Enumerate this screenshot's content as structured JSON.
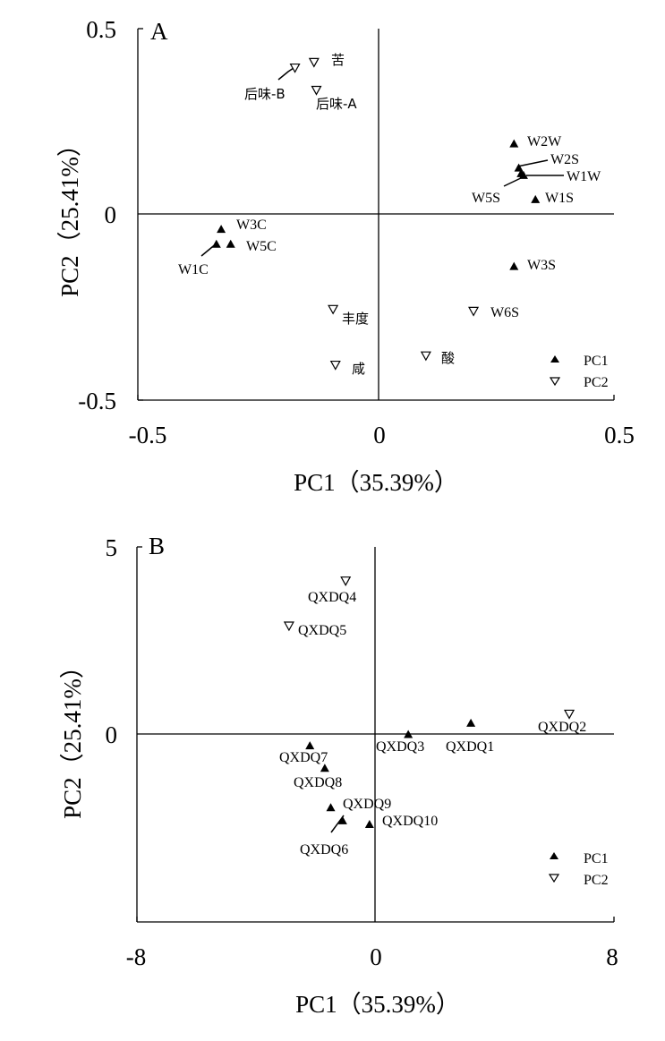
{
  "chart_data": [
    {
      "type": "scatter",
      "panel_label": "A",
      "xlabel": "PC1（35.39%）",
      "ylabel": "PC2（25.41%）",
      "xlim": [
        -0.5,
        0.5
      ],
      "ylim": [
        -0.5,
        0.5
      ],
      "xticks": [
        "-0.5",
        "0",
        "0.5"
      ],
      "yticks": [
        "0.5",
        "0",
        "-0.5"
      ],
      "legend_position": "bottom-right",
      "series": [
        {
          "name": "PC1",
          "marker": "filled-triangle-up",
          "points": [
            {
              "label": "W2W",
              "x": 0.29,
              "y": 0.19
            },
            {
              "label": "W2S",
              "x": 0.3,
              "y": 0.125
            },
            {
              "label": "W1W",
              "x": 0.31,
              "y": 0.105
            },
            {
              "label": "W5S",
              "x": 0.305,
              "y": 0.11
            },
            {
              "label": "W1S",
              "x": 0.335,
              "y": 0.04
            },
            {
              "label": "W3S",
              "x": 0.29,
              "y": -0.14
            },
            {
              "label": "W3C",
              "x": -0.325,
              "y": -0.04
            },
            {
              "label": "W5C",
              "x": -0.305,
              "y": -0.08
            },
            {
              "label": "W1C",
              "x": -0.335,
              "y": -0.08
            }
          ]
        },
        {
          "name": "PC2",
          "marker": "open-triangle-down",
          "points": [
            {
              "label": "苦",
              "x": -0.13,
              "y": 0.41
            },
            {
              "label": "后味-B",
              "x": -0.17,
              "y": 0.395
            },
            {
              "label": "后味-A",
              "x": -0.125,
              "y": 0.335
            },
            {
              "label": "丰度",
              "x": -0.09,
              "y": -0.255
            },
            {
              "label": "咸",
              "x": -0.085,
              "y": -0.405
            },
            {
              "label": "酸",
              "x": 0.105,
              "y": -0.38
            },
            {
              "label": "W6S",
              "x": 0.205,
              "y": -0.26
            }
          ]
        }
      ]
    },
    {
      "type": "scatter",
      "panel_label": "B",
      "xlabel": "PC1（35.39%）",
      "ylabel": "PC2（25.41%）",
      "xlim": [
        -8,
        8
      ],
      "ylim": [
        -5,
        5
      ],
      "xticks": [
        "-8",
        "0",
        "8"
      ],
      "yticks": [
        "5",
        "0"
      ],
      "legend_position": "bottom-right",
      "series": [
        {
          "name": "PC1",
          "marker": "filled-triangle-up",
          "points": [
            {
              "label": "QXDQ1",
              "x": 3.2,
              "y": 0.3
            },
            {
              "label": "QXDQ3",
              "x": 1.1,
              "y": 0.0
            },
            {
              "label": "QXDQ7",
              "x": -2.2,
              "y": -0.3
            },
            {
              "label": "QXDQ8",
              "x": -1.7,
              "y": -0.9
            },
            {
              "label": "QXDQ9",
              "x": -1.5,
              "y": -1.95
            },
            {
              "label": "QXDQ10",
              "x": -0.2,
              "y": -2.4
            },
            {
              "label": "QXDQ6",
              "x": -1.1,
              "y": -2.3
            }
          ]
        },
        {
          "name": "PC2",
          "marker": "open-triangle-down",
          "points": [
            {
              "label": "QXDQ4",
              "x": -1.0,
              "y": 4.1
            },
            {
              "label": "QXDQ5",
              "x": -2.9,
              "y": 2.9
            },
            {
              "label": "QXDQ2",
              "x": 6.5,
              "y": 0.55
            }
          ]
        }
      ]
    }
  ]
}
